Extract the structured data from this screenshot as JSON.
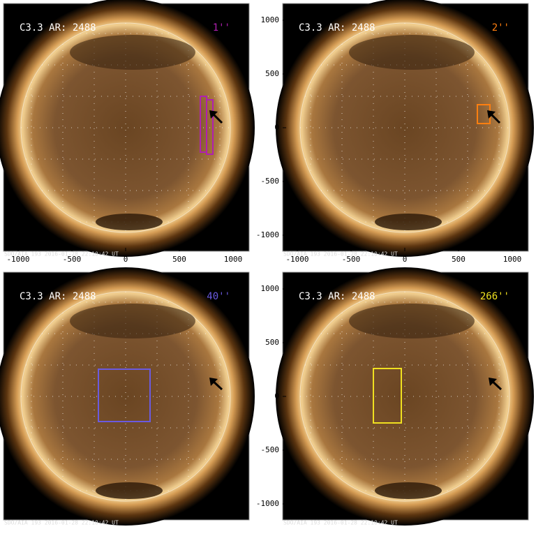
{
  "panels": [
    {
      "title": "C3.3 AR: 2488",
      "tag": "1''",
      "tag_color": "#b020b0",
      "footer": "SDO/AIA 193  2016-01-28 22:10:42 UT"
    },
    {
      "title": "C3.3 AR: 2488",
      "tag": "2''",
      "tag_color": "#ff7f10",
      "footer": "SDO/AIA 193  2016-01-28 22:10:42 UT"
    },
    {
      "title": "C3.3 AR: 2488",
      "tag": "40''",
      "tag_color": "#6a5ae0",
      "footer": "SDO/AIA 193  2016-01-28 22:10:42 UT"
    },
    {
      "title": "C3.3 AR: 2488",
      "tag": "266''",
      "tag_color": "#f0e020",
      "footer": "SDO/AIA 193  2016-01-28 22:10:42 UT"
    }
  ],
  "axes": {
    "xticks": [
      -1000,
      -500,
      0,
      500,
      1000
    ],
    "yticks": [
      1000,
      500,
      0,
      -500,
      -1000
    ]
  }
}
